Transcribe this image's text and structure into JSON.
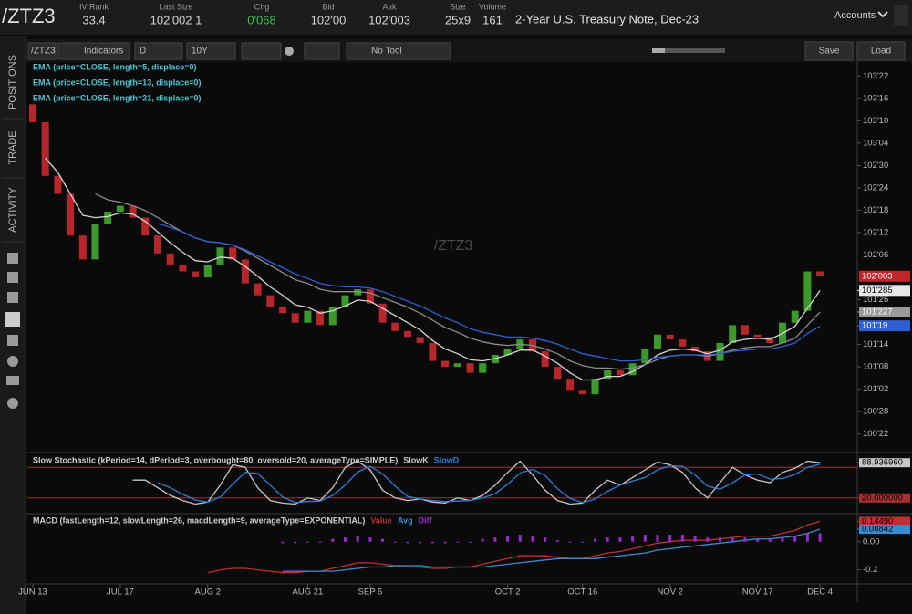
{
  "header": {
    "symbol": "/ZTZ3",
    "fields": [
      {
        "label": "IV Rank",
        "value": "33.4"
      },
      {
        "label": "Last Size",
        "value": "102'002 1"
      },
      {
        "label": "Chg",
        "value": "0'068"
      },
      {
        "label": "Bid",
        "value": "102'00"
      },
      {
        "label": "Ask",
        "value": "102'003"
      },
      {
        "label": "Size",
        "value": "25x9"
      },
      {
        "label": "Volume",
        "value": "161"
      }
    ],
    "description": "2-Year U.S. Treasury Note, Dec-23",
    "accounts": "Accounts"
  },
  "side_tabs": [
    "POSITIONS",
    "TRADE",
    "ACTIVITY"
  ],
  "toolbar": {
    "symbol": "/ZTZ3",
    "indicators": "Indicators",
    "aggregation": "D",
    "timeframe": "10Y",
    "drawing_tool": "No Tool",
    "save": "Save",
    "load": "Load"
  },
  "chart_data": [
    {
      "type": "candlestick",
      "watermark": "/ZTZ3",
      "categories": [
        "JUN 13",
        null,
        null,
        null,
        null,
        null,
        null,
        "JUL 17",
        null,
        null,
        null,
        null,
        null,
        null,
        "AUG 2",
        null,
        null,
        null,
        null,
        null,
        null,
        null,
        "AUG 21",
        null,
        null,
        null,
        null,
        "SEP 5",
        null,
        null,
        null,
        null,
        null,
        null,
        null,
        null,
        null,
        null,
        "OCT 2",
        null,
        null,
        null,
        null,
        null,
        "OCT 16",
        null,
        null,
        null,
        null,
        null,
        null,
        "NOV 2",
        null,
        null,
        null,
        null,
        null,
        null,
        "NOV 17",
        null,
        null,
        null,
        null,
        "DEC 4"
      ],
      "open": [
        103.45,
        103.3,
        102.85,
        102.7,
        102.35,
        102.15,
        102.45,
        102.55,
        102.6,
        102.5,
        102.35,
        102.2,
        102.1,
        102.05,
        102.0,
        102.1,
        102.25,
        102.15,
        101.95,
        101.85,
        101.75,
        101.7,
        101.62,
        101.72,
        101.6,
        101.75,
        101.85,
        101.9,
        101.78,
        101.62,
        101.55,
        101.5,
        101.45,
        101.3,
        101.25,
        101.28,
        101.2,
        101.28,
        101.35,
        101.4,
        101.48,
        101.38,
        101.25,
        101.15,
        101.05,
        101.02,
        101.15,
        101.22,
        101.18,
        101.28,
        101.4,
        101.52,
        101.48,
        101.42,
        101.38,
        101.3,
        101.45,
        101.6,
        101.52,
        101.5,
        101.45,
        101.62,
        101.72,
        102.05
      ],
      "close": [
        103.3,
        102.85,
        102.7,
        102.35,
        102.15,
        102.45,
        102.55,
        102.6,
        102.5,
        102.35,
        102.2,
        102.1,
        102.05,
        102.0,
        102.1,
        102.25,
        102.15,
        101.95,
        101.85,
        101.75,
        101.7,
        101.62,
        101.72,
        101.6,
        101.75,
        101.85,
        101.9,
        101.78,
        101.62,
        101.55,
        101.5,
        101.45,
        101.3,
        101.25,
        101.28,
        101.2,
        101.28,
        101.35,
        101.4,
        101.48,
        101.38,
        101.25,
        101.15,
        101.05,
        101.02,
        101.15,
        101.22,
        101.18,
        101.28,
        101.4,
        101.52,
        101.48,
        101.42,
        101.38,
        101.3,
        101.45,
        101.6,
        101.52,
        101.5,
        101.45,
        101.62,
        101.72,
        102.05,
        102.01
      ],
      "up_color": "#3c9a2b",
      "down_color": "#b8262b",
      "legend_color": "#4fc6d2",
      "series": [
        {
          "name": "EMA (price=CLOSE, length=5, displace=0)",
          "color": "#d4d4d4",
          "values": [
            null,
            103.0,
            102.88,
            102.7,
            102.52,
            102.5,
            102.51,
            102.54,
            102.53,
            102.47,
            102.38,
            102.29,
            102.21,
            102.14,
            102.13,
            102.17,
            102.16,
            102.09,
            102.01,
            101.92,
            101.85,
            101.77,
            101.75,
            101.7,
            101.72,
            101.76,
            101.81,
            101.8,
            101.74,
            101.68,
            101.62,
            101.56,
            101.47,
            101.4,
            101.36,
            101.31,
            101.3,
            101.32,
            101.35,
            101.39,
            101.39,
            101.34,
            101.28,
            101.2,
            101.14,
            101.14,
            101.17,
            101.17,
            101.21,
            101.27,
            101.35,
            101.39,
            101.4,
            101.39,
            101.36,
            101.39,
            101.46,
            101.48,
            101.49,
            101.48,
            101.53,
            101.59,
            101.74,
            101.89
          ]
        },
        {
          "name": "EMA (price=CLOSE, length=13, displace=0)",
          "color": "#8c8c8c",
          "values": [
            null,
            null,
            null,
            null,
            null,
            102.7,
            102.65,
            102.63,
            102.6,
            102.56,
            102.5,
            102.44,
            102.38,
            102.33,
            102.3,
            102.29,
            102.27,
            102.22,
            102.16,
            102.1,
            102.04,
            101.98,
            101.95,
            101.9,
            101.88,
            101.88,
            101.88,
            101.87,
            101.83,
            101.79,
            101.75,
            101.7,
            101.64,
            101.58,
            101.54,
            101.49,
            101.46,
            101.44,
            101.43,
            101.44,
            101.43,
            101.4,
            101.36,
            101.3,
            101.26,
            101.24,
            101.24,
            101.23,
            101.24,
            101.27,
            101.31,
            101.34,
            101.35,
            101.35,
            101.34,
            101.36,
            101.39,
            101.41,
            101.42,
            101.42,
            101.45,
            101.49,
            101.6,
            101.71
          ]
        },
        {
          "name": "EMA (price=CLOSE, length=21, displace=0)",
          "color": "#2f5fd0",
          "values": [
            null,
            null,
            null,
            null,
            null,
            null,
            null,
            null,
            null,
            null,
            102.45,
            102.42,
            102.38,
            102.33,
            102.3,
            102.29,
            102.27,
            102.23,
            102.18,
            102.13,
            102.08,
            102.03,
            101.99,
            101.95,
            101.93,
            101.92,
            101.92,
            101.91,
            101.88,
            101.84,
            101.8,
            101.76,
            101.71,
            101.66,
            101.62,
            101.57,
            101.54,
            101.52,
            101.5,
            101.5,
            101.49,
            101.47,
            101.44,
            101.4,
            101.36,
            101.34,
            101.32,
            101.3,
            101.3,
            101.31,
            101.33,
            101.34,
            101.35,
            101.35,
            101.35,
            101.36,
            101.38,
            101.39,
            101.4,
            101.4,
            101.42,
            101.45,
            101.53,
            101.59
          ]
        }
      ],
      "ylim": [
        100.54,
        103.98
      ],
      "yticks": [
        {
          "value": 103.6875,
          "label": "103'22"
        },
        {
          "value": 103.5,
          "label": "103'16"
        },
        {
          "value": 103.3125,
          "label": "103'10"
        },
        {
          "value": 103.125,
          "label": "103'04"
        },
        {
          "value": 102.9375,
          "label": "102'30"
        },
        {
          "value": 102.75,
          "label": "102'24"
        },
        {
          "value": 102.5625,
          "label": "102'18"
        },
        {
          "value": 102.375,
          "label": "102'12"
        },
        {
          "value": 102.1875,
          "label": "102'06"
        },
        {
          "value": 101.8125,
          "label": "101'26"
        },
        {
          "value": 101.4375,
          "label": "101'14"
        },
        {
          "value": 101.25,
          "label": "101'08"
        },
        {
          "value": 101.0625,
          "label": "101'02"
        },
        {
          "value": 100.875,
          "label": "100'28"
        },
        {
          "value": 100.6875,
          "label": "100'22"
        }
      ],
      "price_labels": [
        {
          "value": 102.009375,
          "label": "102'003",
          "color": "#c0262c"
        },
        {
          "value": 101.890625,
          "label": "101'285",
          "color": "#e8e8e8"
        },
        {
          "value": 101.709375,
          "label": "101'227",
          "color": "#9a9a9a"
        },
        {
          "value": 101.59375,
          "label": "101'19",
          "color": "#2f5fd0"
        }
      ]
    },
    {
      "type": "line",
      "title": "Slow Stochastic (kPeriod=14, dPeriod=3, overbought=80, oversold=20, averageType=SIMPLE)",
      "series": [
        {
          "name": "SlowK",
          "color": "#c8c8c8",
          "values": [
            null,
            null,
            null,
            null,
            null,
            null,
            null,
            null,
            55,
            55,
            40,
            25,
            15,
            8,
            12,
            45,
            85,
            80,
            40,
            15,
            10,
            8,
            20,
            15,
            40,
            80,
            92,
            75,
            35,
            20,
            15,
            18,
            12,
            10,
            20,
            15,
            25,
            45,
            70,
            92,
            65,
            35,
            15,
            8,
            10,
            35,
            55,
            45,
            60,
            75,
            90,
            85,
            70,
            40,
            20,
            50,
            80,
            65,
            55,
            50,
            70,
            78,
            92,
            88.93696
          ]
        },
        {
          "name": "SlowD",
          "color": "#2a80d8",
          "values": [
            null,
            null,
            null,
            null,
            null,
            null,
            null,
            null,
            null,
            null,
            50,
            40,
            27,
            16,
            12,
            22,
            47,
            70,
            68,
            45,
            22,
            11,
            13,
            14,
            25,
            45,
            71,
            82,
            67,
            43,
            23,
            18,
            15,
            13,
            14,
            15,
            20,
            28,
            47,
            69,
            76,
            64,
            38,
            19,
            11,
            18,
            33,
            45,
            53,
            60,
            75,
            83,
            82,
            65,
            43,
            37,
            50,
            65,
            67,
            57,
            58,
            66,
            80,
            86
          ]
        }
      ],
      "ylim": [
        0,
        100
      ],
      "levels": [
        80,
        20
      ],
      "level_color": "#a83030",
      "value_labels": [
        {
          "value": 88.93696,
          "label": "88.936960",
          "color": "#c8c8c8"
        },
        {
          "value": 20,
          "label": "20.000000",
          "color": "#a83030"
        }
      ]
    },
    {
      "type": "line",
      "title": "MACD (fastLength=12, slowLength=26, macdLength=9, averageType=EXPONENTIAL)",
      "series": [
        {
          "name": "Value",
          "color": "#c03030",
          "values": [
            null,
            null,
            null,
            null,
            null,
            null,
            null,
            null,
            null,
            null,
            null,
            null,
            null,
            null,
            -0.22,
            -0.2,
            -0.19,
            -0.19,
            -0.2,
            -0.21,
            -0.22,
            -0.22,
            -0.21,
            -0.21,
            -0.19,
            -0.17,
            -0.15,
            -0.15,
            -0.16,
            -0.17,
            -0.18,
            -0.18,
            -0.19,
            -0.19,
            -0.18,
            -0.18,
            -0.16,
            -0.14,
            -0.12,
            -0.1,
            -0.1,
            -0.1,
            -0.11,
            -0.12,
            -0.12,
            -0.1,
            -0.08,
            -0.07,
            -0.05,
            -0.03,
            -0.01,
            0.0,
            0.01,
            0.01,
            0.01,
            0.02,
            0.03,
            0.04,
            0.04,
            0.04,
            0.06,
            0.08,
            0.12,
            0.1449
          ]
        },
        {
          "name": "Avg",
          "color": "#3a8ad0",
          "values": [
            null,
            null,
            null,
            null,
            null,
            null,
            null,
            null,
            null,
            null,
            null,
            null,
            null,
            null,
            null,
            null,
            null,
            null,
            null,
            null,
            -0.21,
            -0.21,
            -0.21,
            -0.21,
            -0.21,
            -0.2,
            -0.19,
            -0.18,
            -0.18,
            -0.17,
            -0.17,
            -0.17,
            -0.18,
            -0.18,
            -0.18,
            -0.18,
            -0.18,
            -0.17,
            -0.16,
            -0.15,
            -0.14,
            -0.13,
            -0.12,
            -0.12,
            -0.12,
            -0.12,
            -0.11,
            -0.1,
            -0.09,
            -0.08,
            -0.06,
            -0.05,
            -0.04,
            -0.03,
            -0.02,
            -0.01,
            0.0,
            0.01,
            0.02,
            0.02,
            0.03,
            0.04,
            0.06,
            0.08842
          ]
        },
        {
          "name": "Diff",
          "color": "#9a2bd0",
          "style": "bar",
          "values": [
            null,
            null,
            null,
            null,
            null,
            null,
            null,
            null,
            null,
            null,
            null,
            null,
            null,
            null,
            null,
            null,
            null,
            null,
            null,
            null,
            -0.01,
            -0.01,
            0.0,
            0.0,
            0.02,
            0.03,
            0.04,
            0.03,
            0.02,
            0.0,
            -0.01,
            -0.01,
            -0.01,
            -0.01,
            0.0,
            0.0,
            0.02,
            0.03,
            0.04,
            0.05,
            0.04,
            0.03,
            0.01,
            0.0,
            0.0,
            0.02,
            0.03,
            0.03,
            0.04,
            0.05,
            0.05,
            0.05,
            0.05,
            0.04,
            0.03,
            0.03,
            0.03,
            0.03,
            0.02,
            0.02,
            0.03,
            0.04,
            0.06,
            0.06
          ]
        }
      ],
      "ylim": [
        -0.3,
        0.18
      ],
      "yticks": [
        {
          "value": 0,
          "label": "0.00"
        },
        -0.2
      ],
      "value_labels": [
        {
          "value": 0.1449,
          "label": "0.14490",
          "color": "#c03030"
        },
        {
          "value": 0.08842,
          "label": "0.08842",
          "color": "#3a8ad0"
        }
      ]
    }
  ]
}
